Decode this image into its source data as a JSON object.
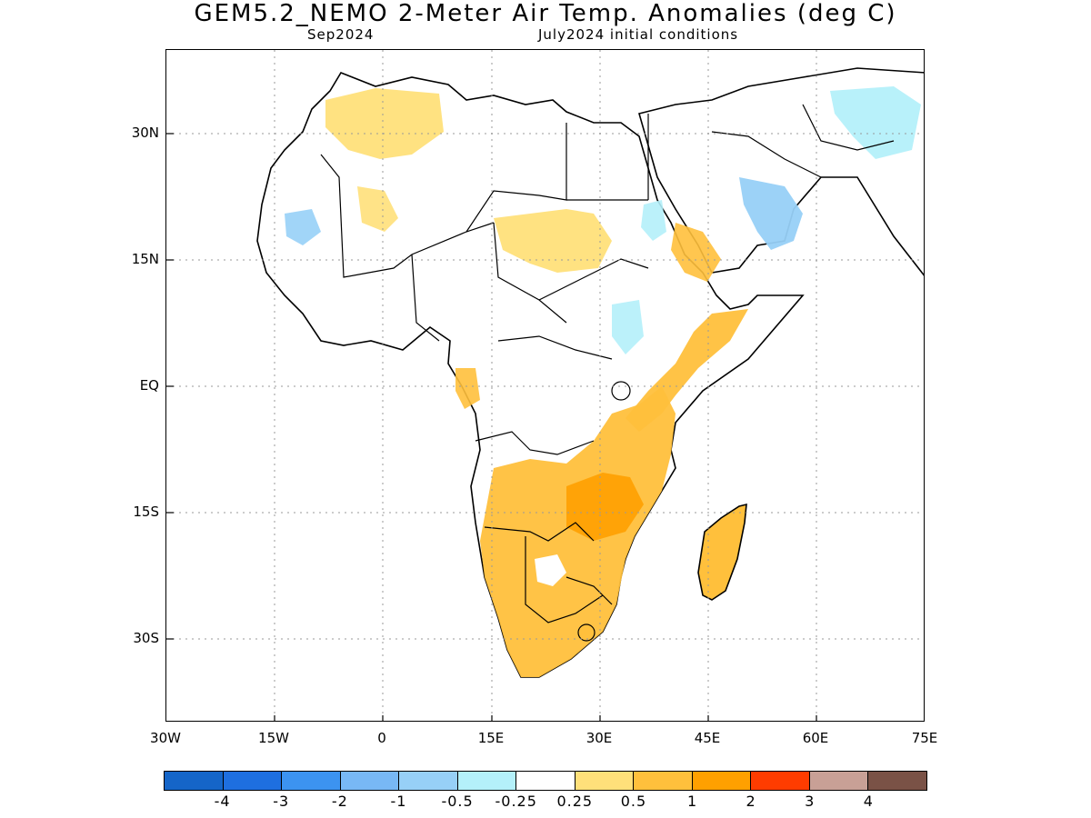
{
  "title": "GEM5.2_NEMO 2-Meter Air Temp. Anomalies (deg C)",
  "subtitle_left": "Sep2024",
  "subtitle_right": "July2024 initial conditions",
  "lat_labels": [
    "30N",
    "15N",
    "EQ",
    "15S",
    "30S"
  ],
  "lon_labels": [
    "30W",
    "15W",
    "0",
    "15E",
    "30E",
    "45E",
    "60E",
    "75E"
  ],
  "colorbar": {
    "colors": [
      "#1565c8",
      "#1e6fe0",
      "#3c93f0",
      "#78b8f5",
      "#97d0f7",
      "#b4f0fa",
      "#ffffff",
      "#ffe07a",
      "#ffc03c",
      "#ffa000",
      "#ff3c00",
      "#c8a096",
      "#7a5246"
    ],
    "labels": [
      "-4",
      "-3",
      "-2",
      "-1",
      "-0.5",
      "-0.25",
      "0.25",
      "0.5",
      "1",
      "2",
      "3",
      "4"
    ]
  },
  "map": {
    "region": "Africa and Arabian Peninsula",
    "extent": {
      "lon": [
        -30,
        75
      ],
      "lat": [
        -40,
        40
      ]
    }
  }
}
